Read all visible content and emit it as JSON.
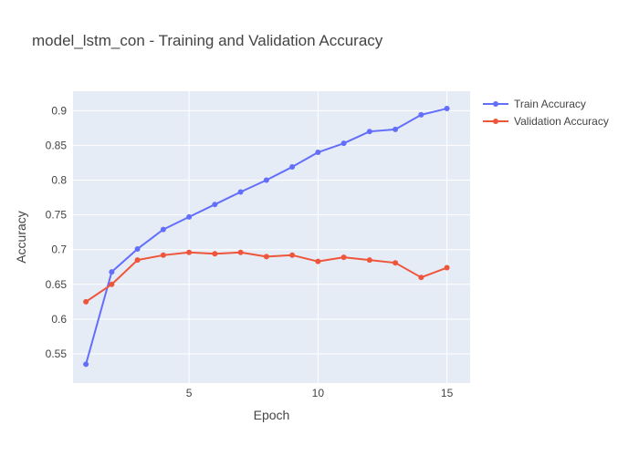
{
  "chart_data": {
    "type": "line",
    "title": "model_lstm_con - Training and Validation Accuracy",
    "xlabel": "Epoch",
    "ylabel": "Accuracy",
    "x": [
      1,
      2,
      3,
      4,
      5,
      6,
      7,
      8,
      9,
      10,
      11,
      12,
      13,
      14,
      15
    ],
    "xlim": [
      0.5,
      15.9
    ],
    "ylim": [
      0.508,
      0.928
    ],
    "x_ticks": [
      5,
      10,
      15
    ],
    "y_ticks": [
      0.55,
      0.6,
      0.65,
      0.7,
      0.75,
      0.8,
      0.85,
      0.9
    ],
    "grid": true,
    "legend_position": "top-right",
    "series": [
      {
        "name": "Train Accuracy",
        "color": "#636efa",
        "values": [
          0.535,
          0.668,
          0.701,
          0.729,
          0.747,
          0.765,
          0.783,
          0.8,
          0.819,
          0.84,
          0.853,
          0.87,
          0.873,
          0.894,
          0.903
        ]
      },
      {
        "name": "Validation Accuracy",
        "color": "#ef553b",
        "values": [
          0.625,
          0.65,
          0.685,
          0.692,
          0.696,
          0.694,
          0.696,
          0.69,
          0.692,
          0.683,
          0.689,
          0.685,
          0.681,
          0.66,
          0.674
        ]
      }
    ],
    "colors": {
      "plot_background": "#e5ecf6",
      "grid": "#ffffff",
      "text": "#444444"
    }
  }
}
